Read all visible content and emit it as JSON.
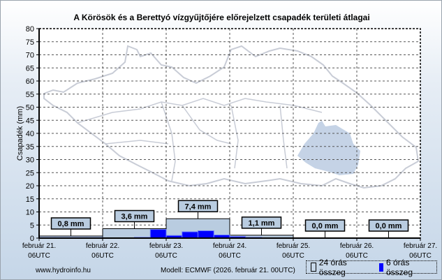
{
  "chart_data": {
    "type": "bar",
    "title": "A Körösök és a Berettyó vízgyűjtőjére előrejelzett csapadék területi átlagai",
    "ylabel": "Csapadék (mm)",
    "xlabel": "",
    "ylim": [
      0,
      80
    ],
    "yticks": [
      0,
      5,
      10,
      15,
      20,
      25,
      30,
      35,
      40,
      45,
      50,
      55,
      60,
      65,
      70,
      75,
      80
    ],
    "xticks": [
      [
        "február 21.",
        "06UTC"
      ],
      [
        "február 22.",
        "06UTC"
      ],
      [
        "február 23.",
        "06UTC"
      ],
      [
        "február 24.",
        "06UTC"
      ],
      [
        "február 25.",
        "06UTC"
      ],
      [
        "február 26.",
        "06UTC"
      ],
      [
        "február 27.",
        "06UTC"
      ]
    ],
    "grid": true,
    "series": [
      {
        "name": "24 órás összeg",
        "color": "#b9cce0",
        "values": [
          0.8,
          3.6,
          7.4,
          1.1,
          0.0,
          0.0
        ],
        "labels": [
          "0,8 mm",
          "3,6 mm",
          "7,4 mm",
          "1,1 mm",
          "0,0 mm",
          "0,0 mm"
        ]
      },
      {
        "name": "6 órás összeg",
        "color": "#0000ff",
        "values": [
          0.2,
          0.2,
          0.2,
          0.2,
          0,
          0,
          0.3,
          3.3,
          1.0,
          2.4,
          2.8,
          1.2,
          0.6,
          0.3,
          0.1,
          0.1,
          0,
          0,
          0,
          0,
          0,
          0,
          0,
          0
        ]
      }
    ],
    "legend": "bottom-right"
  },
  "footer": {
    "site": "www.hydroinfo.hu",
    "model": "Modell: ECMWF (2026. február 21. 00UTC)"
  },
  "colors": {
    "region": "#c5d3e6",
    "outline": "#c8ccd6"
  }
}
